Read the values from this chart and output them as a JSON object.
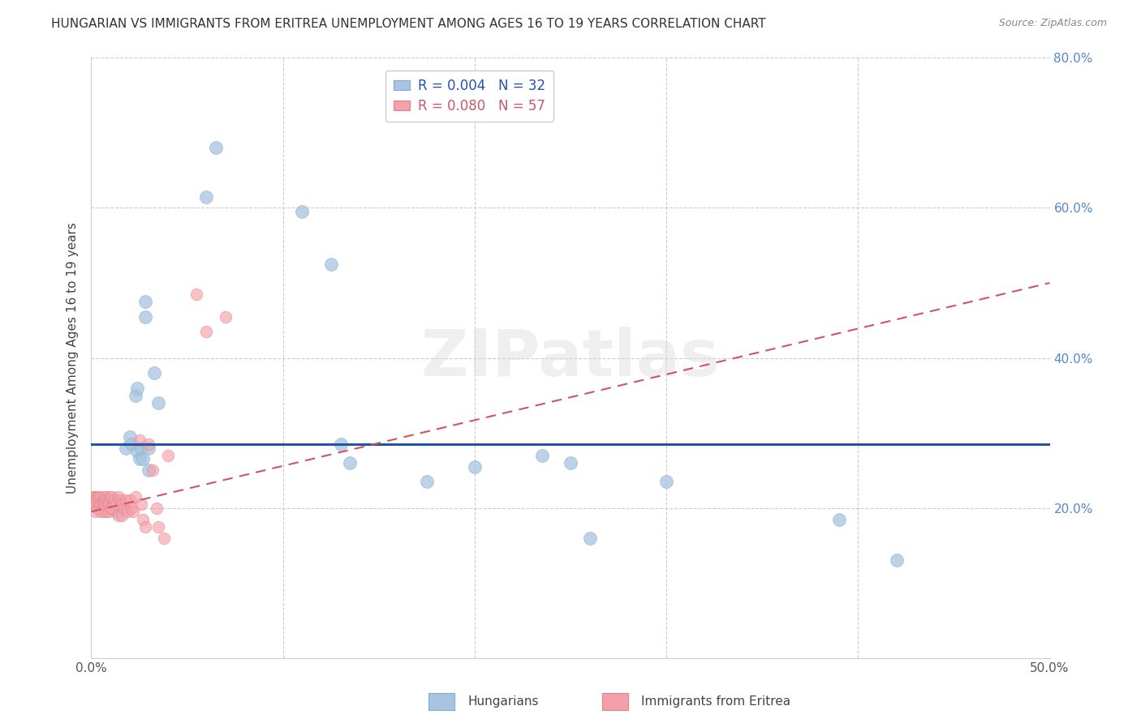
{
  "title": "HUNGARIAN VS IMMIGRANTS FROM ERITREA UNEMPLOYMENT AMONG AGES 16 TO 19 YEARS CORRELATION CHART",
  "source": "Source: ZipAtlas.com",
  "ylabel": "Unemployment Among Ages 16 to 19 years",
  "xlim": [
    0.0,
    0.5
  ],
  "ylim": [
    0.0,
    0.8
  ],
  "legend_blue_r": "R = 0.004",
  "legend_blue_n": "N = 32",
  "legend_pink_r": "R = 0.080",
  "legend_pink_n": "N = 57",
  "blue_color": "#A8C4E0",
  "pink_color": "#F4A0A8",
  "blue_line_color": "#2255AA",
  "pink_line_color": "#CC5566",
  "watermark": "ZIPatlas",
  "blue_line_y0": 0.285,
  "blue_line_y1": 0.285,
  "pink_line_x0": 0.0,
  "pink_line_y0": 0.195,
  "pink_line_x1": 0.5,
  "pink_line_y1": 0.5,
  "blue_points_x": [
    0.009,
    0.013,
    0.013,
    0.018,
    0.02,
    0.021,
    0.023,
    0.024,
    0.024,
    0.025,
    0.026,
    0.027,
    0.028,
    0.028,
    0.03,
    0.03,
    0.033,
    0.035,
    0.06,
    0.065,
    0.11,
    0.125,
    0.13,
    0.135,
    0.175,
    0.2,
    0.235,
    0.25,
    0.26,
    0.3,
    0.39,
    0.42
  ],
  "blue_points_y": [
    0.205,
    0.205,
    0.195,
    0.28,
    0.295,
    0.285,
    0.35,
    0.36,
    0.275,
    0.265,
    0.28,
    0.265,
    0.455,
    0.475,
    0.28,
    0.25,
    0.38,
    0.34,
    0.615,
    0.68,
    0.595,
    0.525,
    0.285,
    0.26,
    0.235,
    0.255,
    0.27,
    0.26,
    0.16,
    0.235,
    0.185,
    0.13
  ],
  "pink_points_x": [
    0.001,
    0.001,
    0.001,
    0.002,
    0.002,
    0.002,
    0.002,
    0.003,
    0.003,
    0.003,
    0.004,
    0.004,
    0.005,
    0.005,
    0.005,
    0.006,
    0.006,
    0.006,
    0.007,
    0.007,
    0.008,
    0.008,
    0.008,
    0.009,
    0.009,
    0.009,
    0.01,
    0.01,
    0.011,
    0.011,
    0.012,
    0.013,
    0.014,
    0.014,
    0.015,
    0.016,
    0.016,
    0.017,
    0.018,
    0.019,
    0.02,
    0.021,
    0.022,
    0.023,
    0.025,
    0.026,
    0.027,
    0.028,
    0.03,
    0.032,
    0.034,
    0.035,
    0.038,
    0.04,
    0.055,
    0.06,
    0.07
  ],
  "pink_points_y": [
    0.215,
    0.215,
    0.205,
    0.215,
    0.21,
    0.205,
    0.195,
    0.215,
    0.21,
    0.2,
    0.215,
    0.205,
    0.215,
    0.205,
    0.195,
    0.21,
    0.205,
    0.195,
    0.215,
    0.205,
    0.215,
    0.21,
    0.195,
    0.21,
    0.205,
    0.195,
    0.215,
    0.2,
    0.215,
    0.2,
    0.21,
    0.205,
    0.215,
    0.19,
    0.21,
    0.205,
    0.19,
    0.2,
    0.21,
    0.195,
    0.21,
    0.2,
    0.195,
    0.215,
    0.29,
    0.205,
    0.185,
    0.175,
    0.285,
    0.25,
    0.2,
    0.175,
    0.16,
    0.27,
    0.485,
    0.435,
    0.455
  ]
}
